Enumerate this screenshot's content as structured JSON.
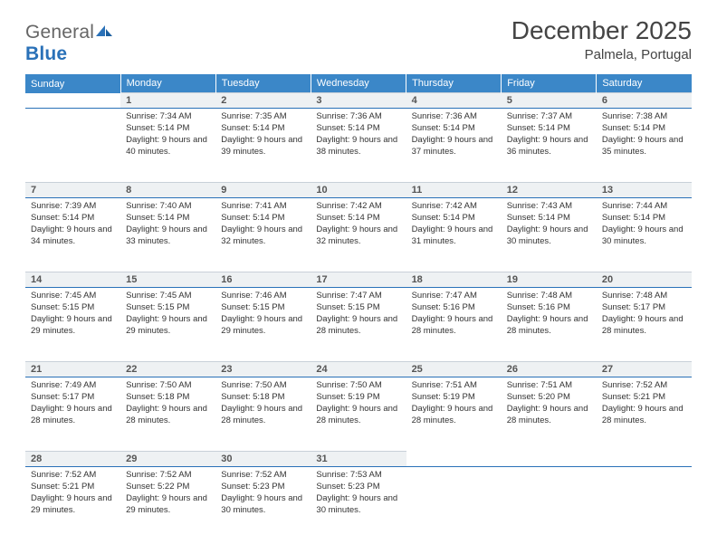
{
  "logo": {
    "text_general": "General",
    "text_blue": "Blue"
  },
  "title": "December 2025",
  "location": "Palmela, Portugal",
  "colors": {
    "header_bg": "#3b87c8",
    "header_text": "#ffffff",
    "daynum_bg": "#eef1f3",
    "rule": "#2a71b8",
    "body_text": "#333333",
    "page_bg": "#ffffff"
  },
  "weekdays": [
    "Sunday",
    "Monday",
    "Tuesday",
    "Wednesday",
    "Thursday",
    "Friday",
    "Saturday"
  ],
  "weeks": [
    [
      null,
      {
        "n": "1",
        "sr": "Sunrise: 7:34 AM",
        "ss": "Sunset: 5:14 PM",
        "dl": "Daylight: 9 hours and 40 minutes."
      },
      {
        "n": "2",
        "sr": "Sunrise: 7:35 AM",
        "ss": "Sunset: 5:14 PM",
        "dl": "Daylight: 9 hours and 39 minutes."
      },
      {
        "n": "3",
        "sr": "Sunrise: 7:36 AM",
        "ss": "Sunset: 5:14 PM",
        "dl": "Daylight: 9 hours and 38 minutes."
      },
      {
        "n": "4",
        "sr": "Sunrise: 7:36 AM",
        "ss": "Sunset: 5:14 PM",
        "dl": "Daylight: 9 hours and 37 minutes."
      },
      {
        "n": "5",
        "sr": "Sunrise: 7:37 AM",
        "ss": "Sunset: 5:14 PM",
        "dl": "Daylight: 9 hours and 36 minutes."
      },
      {
        "n": "6",
        "sr": "Sunrise: 7:38 AM",
        "ss": "Sunset: 5:14 PM",
        "dl": "Daylight: 9 hours and 35 minutes."
      }
    ],
    [
      {
        "n": "7",
        "sr": "Sunrise: 7:39 AM",
        "ss": "Sunset: 5:14 PM",
        "dl": "Daylight: 9 hours and 34 minutes."
      },
      {
        "n": "8",
        "sr": "Sunrise: 7:40 AM",
        "ss": "Sunset: 5:14 PM",
        "dl": "Daylight: 9 hours and 33 minutes."
      },
      {
        "n": "9",
        "sr": "Sunrise: 7:41 AM",
        "ss": "Sunset: 5:14 PM",
        "dl": "Daylight: 9 hours and 32 minutes."
      },
      {
        "n": "10",
        "sr": "Sunrise: 7:42 AM",
        "ss": "Sunset: 5:14 PM",
        "dl": "Daylight: 9 hours and 32 minutes."
      },
      {
        "n": "11",
        "sr": "Sunrise: 7:42 AM",
        "ss": "Sunset: 5:14 PM",
        "dl": "Daylight: 9 hours and 31 minutes."
      },
      {
        "n": "12",
        "sr": "Sunrise: 7:43 AM",
        "ss": "Sunset: 5:14 PM",
        "dl": "Daylight: 9 hours and 30 minutes."
      },
      {
        "n": "13",
        "sr": "Sunrise: 7:44 AM",
        "ss": "Sunset: 5:14 PM",
        "dl": "Daylight: 9 hours and 30 minutes."
      }
    ],
    [
      {
        "n": "14",
        "sr": "Sunrise: 7:45 AM",
        "ss": "Sunset: 5:15 PM",
        "dl": "Daylight: 9 hours and 29 minutes."
      },
      {
        "n": "15",
        "sr": "Sunrise: 7:45 AM",
        "ss": "Sunset: 5:15 PM",
        "dl": "Daylight: 9 hours and 29 minutes."
      },
      {
        "n": "16",
        "sr": "Sunrise: 7:46 AM",
        "ss": "Sunset: 5:15 PM",
        "dl": "Daylight: 9 hours and 29 minutes."
      },
      {
        "n": "17",
        "sr": "Sunrise: 7:47 AM",
        "ss": "Sunset: 5:15 PM",
        "dl": "Daylight: 9 hours and 28 minutes."
      },
      {
        "n": "18",
        "sr": "Sunrise: 7:47 AM",
        "ss": "Sunset: 5:16 PM",
        "dl": "Daylight: 9 hours and 28 minutes."
      },
      {
        "n": "19",
        "sr": "Sunrise: 7:48 AM",
        "ss": "Sunset: 5:16 PM",
        "dl": "Daylight: 9 hours and 28 minutes."
      },
      {
        "n": "20",
        "sr": "Sunrise: 7:48 AM",
        "ss": "Sunset: 5:17 PM",
        "dl": "Daylight: 9 hours and 28 minutes."
      }
    ],
    [
      {
        "n": "21",
        "sr": "Sunrise: 7:49 AM",
        "ss": "Sunset: 5:17 PM",
        "dl": "Daylight: 9 hours and 28 minutes."
      },
      {
        "n": "22",
        "sr": "Sunrise: 7:50 AM",
        "ss": "Sunset: 5:18 PM",
        "dl": "Daylight: 9 hours and 28 minutes."
      },
      {
        "n": "23",
        "sr": "Sunrise: 7:50 AM",
        "ss": "Sunset: 5:18 PM",
        "dl": "Daylight: 9 hours and 28 minutes."
      },
      {
        "n": "24",
        "sr": "Sunrise: 7:50 AM",
        "ss": "Sunset: 5:19 PM",
        "dl": "Daylight: 9 hours and 28 minutes."
      },
      {
        "n": "25",
        "sr": "Sunrise: 7:51 AM",
        "ss": "Sunset: 5:19 PM",
        "dl": "Daylight: 9 hours and 28 minutes."
      },
      {
        "n": "26",
        "sr": "Sunrise: 7:51 AM",
        "ss": "Sunset: 5:20 PM",
        "dl": "Daylight: 9 hours and 28 minutes."
      },
      {
        "n": "27",
        "sr": "Sunrise: 7:52 AM",
        "ss": "Sunset: 5:21 PM",
        "dl": "Daylight: 9 hours and 28 minutes."
      }
    ],
    [
      {
        "n": "28",
        "sr": "Sunrise: 7:52 AM",
        "ss": "Sunset: 5:21 PM",
        "dl": "Daylight: 9 hours and 29 minutes."
      },
      {
        "n": "29",
        "sr": "Sunrise: 7:52 AM",
        "ss": "Sunset: 5:22 PM",
        "dl": "Daylight: 9 hours and 29 minutes."
      },
      {
        "n": "30",
        "sr": "Sunrise: 7:52 AM",
        "ss": "Sunset: 5:23 PM",
        "dl": "Daylight: 9 hours and 30 minutes."
      },
      {
        "n": "31",
        "sr": "Sunrise: 7:53 AM",
        "ss": "Sunset: 5:23 PM",
        "dl": "Daylight: 9 hours and 30 minutes."
      },
      null,
      null,
      null
    ]
  ]
}
